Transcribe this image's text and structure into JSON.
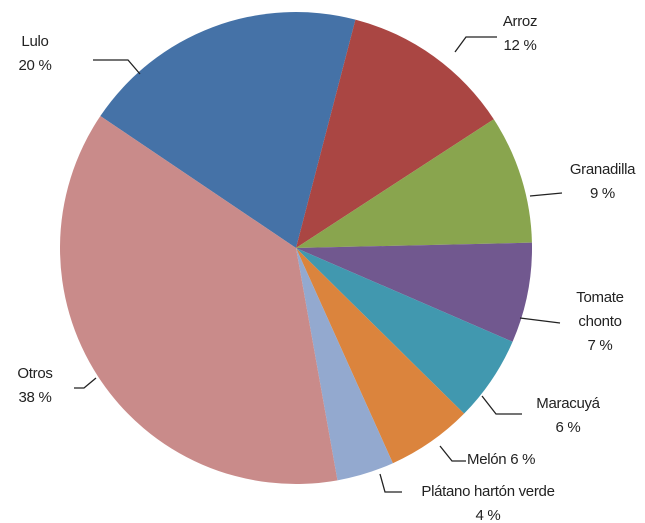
{
  "chart_data": {
    "type": "pie",
    "categories": [
      "Lulo",
      "Arroz",
      "Granadilla",
      "Tomate chonto",
      "Maracuyá",
      "Melón",
      "Plátano hartón verde",
      "Otros"
    ],
    "values": [
      20,
      12,
      9,
      7,
      6,
      6,
      4,
      38
    ],
    "value_labels": [
      "20 %",
      "12 %",
      "9 %",
      "7 %",
      "6 %",
      "6 %",
      "4 %",
      "38 %"
    ],
    "colors": [
      "#4572a7",
      "#aa4643",
      "#89a54e",
      "#71588f",
      "#4198af",
      "#db843d",
      "#93a9cf",
      "#c98b8a"
    ]
  }
}
